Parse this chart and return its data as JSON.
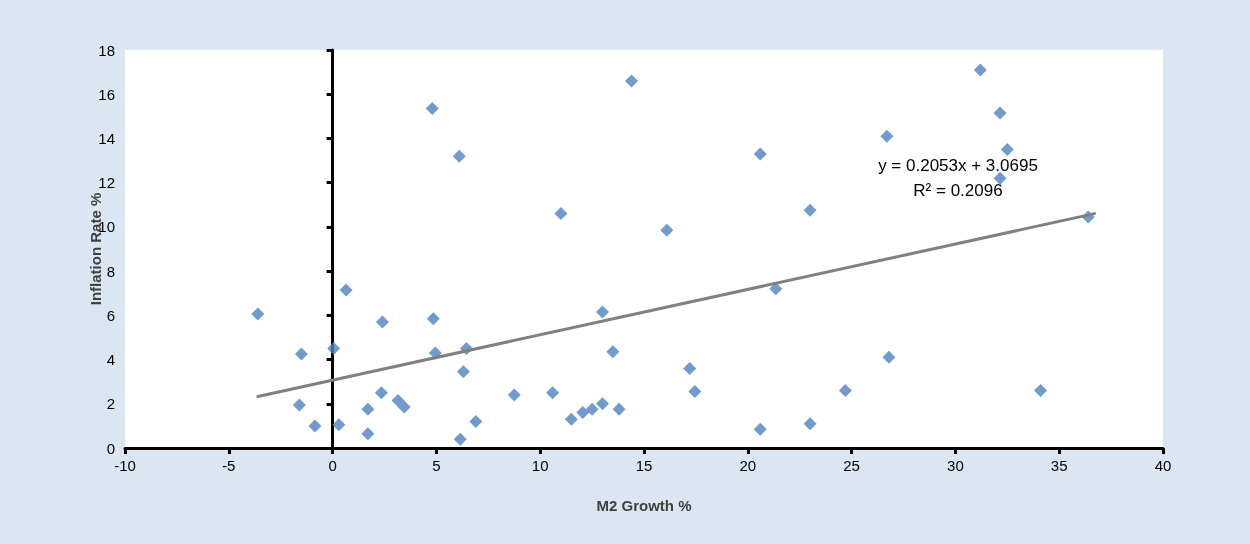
{
  "chart_data": {
    "type": "scatter",
    "xlabel": "M2 Growth %",
    "ylabel": "Inflation Rate %",
    "xlim": [
      -10,
      40
    ],
    "xticks": [
      -10,
      -5,
      0,
      5,
      10,
      15,
      20,
      25,
      30,
      35,
      40
    ],
    "ylim": [
      0,
      18
    ],
    "yticks": [
      0,
      2,
      4,
      6,
      8,
      10,
      12,
      14,
      16,
      18
    ],
    "marker": "diamond",
    "series": [
      {
        "color": "#4f81bd",
        "x": [
          -3.6,
          -1.5,
          -1.6,
          -0.85,
          0.05,
          0.65,
          0.3,
          1.7,
          1.7,
          2.4,
          2.35,
          3.15,
          3.45,
          4.8,
          4.85,
          4.95,
          6.1,
          6.45,
          6.3,
          6.15,
          6.9,
          8.75,
          11.0,
          10.6,
          11.5,
          12.05,
          12.5,
          13.0,
          13.0,
          13.5,
          13.8,
          14.4,
          16.1,
          17.2,
          17.45,
          20.6,
          20.6,
          21.35,
          23.0,
          23.0,
          24.7,
          26.7,
          26.8,
          31.2,
          32.15,
          32.5,
          32.15,
          34.1,
          36.4
        ],
        "values": [
          6.06,
          4.25,
          1.95,
          1.0,
          4.5,
          7.15,
          1.05,
          1.75,
          0.65,
          5.7,
          2.5,
          2.15,
          1.85,
          15.35,
          5.85,
          4.3,
          13.2,
          4.5,
          3.45,
          0.4,
          1.2,
          2.4,
          10.6,
          2.5,
          1.3,
          1.6,
          1.75,
          2.0,
          6.15,
          4.35,
          1.75,
          16.6,
          9.85,
          3.6,
          2.55,
          13.3,
          0.85,
          7.2,
          10.75,
          1.1,
          2.6,
          14.1,
          4.1,
          17.1,
          15.15,
          13.5,
          12.2,
          2.6,
          10.45
        ]
      },
      {
        "type": "line",
        "color": "#808080",
        "marker": "none",
        "x": [
          -3.6,
          36.7
        ],
        "values": [
          2.33,
          10.6
        ]
      }
    ],
    "annotations": [
      "y = 0.2053x + 3.0695",
      "R² = 0.2096"
    ]
  }
}
